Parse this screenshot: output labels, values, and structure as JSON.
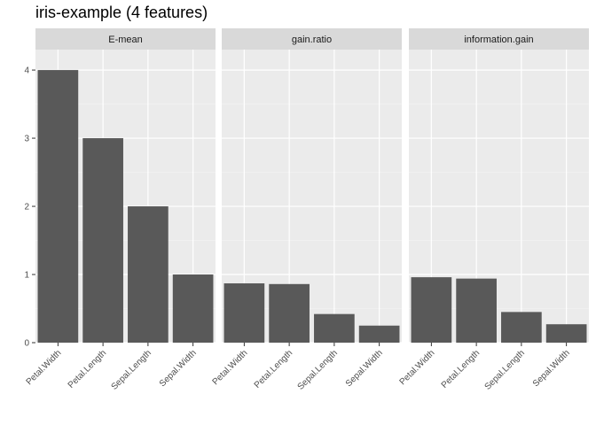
{
  "chart_data": {
    "type": "bar",
    "title": "iris-example (4 features)",
    "xlabel": "",
    "ylabel": "",
    "ylim": [
      0,
      4.3
    ],
    "y_ticks": [
      0,
      1,
      2,
      3,
      4
    ],
    "grid": true,
    "bar_color": "#595959",
    "panel_background": "#ebebeb",
    "strip_background": "#d9d9d9",
    "categories": [
      "Petal.Width",
      "Petal.Length",
      "Sepal.Length",
      "Sepal.Width"
    ],
    "facets": [
      {
        "label": "E-mean",
        "values": [
          4,
          3,
          2,
          1
        ]
      },
      {
        "label": "gain.ratio",
        "values": [
          0.87,
          0.86,
          0.42,
          0.25
        ]
      },
      {
        "label": "information.gain",
        "values": [
          0.96,
          0.94,
          0.45,
          0.27
        ]
      }
    ]
  }
}
